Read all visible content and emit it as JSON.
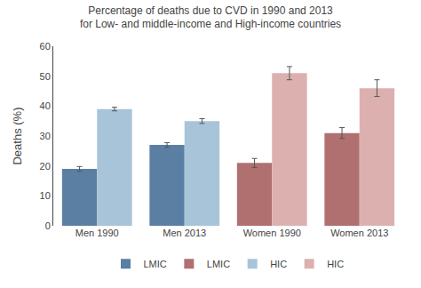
{
  "chart_data": {
    "type": "bar",
    "title": "Percentage of deaths due to CVD in 1990 and 2013",
    "subtitle": "for Low- and middle-income and High-income countries",
    "ylabel": "Deaths (%)",
    "categories": [
      "Men 1990",
      "Men 2013",
      "Women 1990",
      "Women 2013"
    ],
    "series": [
      {
        "name": "LMIC",
        "values": [
          19.0,
          27.0,
          21.0,
          31.0
        ],
        "errors": [
          0.8,
          0.8,
          1.5,
          1.8
        ],
        "colors": [
          "#5b7fa3",
          "#5b7fa3",
          "#b07070",
          "#b07070"
        ]
      },
      {
        "name": "HIC",
        "values": [
          39.0,
          35.0,
          51.0,
          46.0
        ],
        "errors": [
          0.6,
          0.8,
          2.2,
          2.8
        ],
        "colors": [
          "#a8c4d8",
          "#a8c4d8",
          "#ddb0b0",
          "#ddb0b0"
        ]
      }
    ],
    "ylim": [
      0,
      60
    ],
    "yticks": [
      0,
      10,
      20,
      30,
      40,
      50,
      60
    ],
    "grid": false,
    "legend": "bottom"
  }
}
